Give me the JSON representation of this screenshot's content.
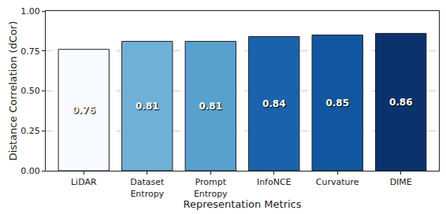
{
  "chart_data": {
    "type": "bar",
    "categories": [
      "LiDAR",
      "Dataset Entropy",
      "Prompt Entropy",
      "InfoNCE",
      "Curvature",
      "DIME"
    ],
    "values": [
      0.76,
      0.81,
      0.81,
      0.84,
      0.85,
      0.86
    ],
    "colors": [
      "#f7fbff",
      "#6fb0d7",
      "#58a1ce",
      "#1a62ab",
      "#1157a0",
      "#0a326d"
    ],
    "x_label": "Representation Metrics",
    "y_label": "Distance Correlation (dCor)",
    "ylim": [
      0,
      1
    ],
    "yticks": [
      {
        "value": 0,
        "label": "0.00"
      },
      {
        "value": 0.25,
        "label": "0.25"
      },
      {
        "value": 0.5,
        "label": "0.50"
      },
      {
        "value": 0.75,
        "label": "0.75"
      },
      {
        "value": 1,
        "label": "1.00"
      }
    ],
    "grid": true,
    "data_labels": true
  }
}
